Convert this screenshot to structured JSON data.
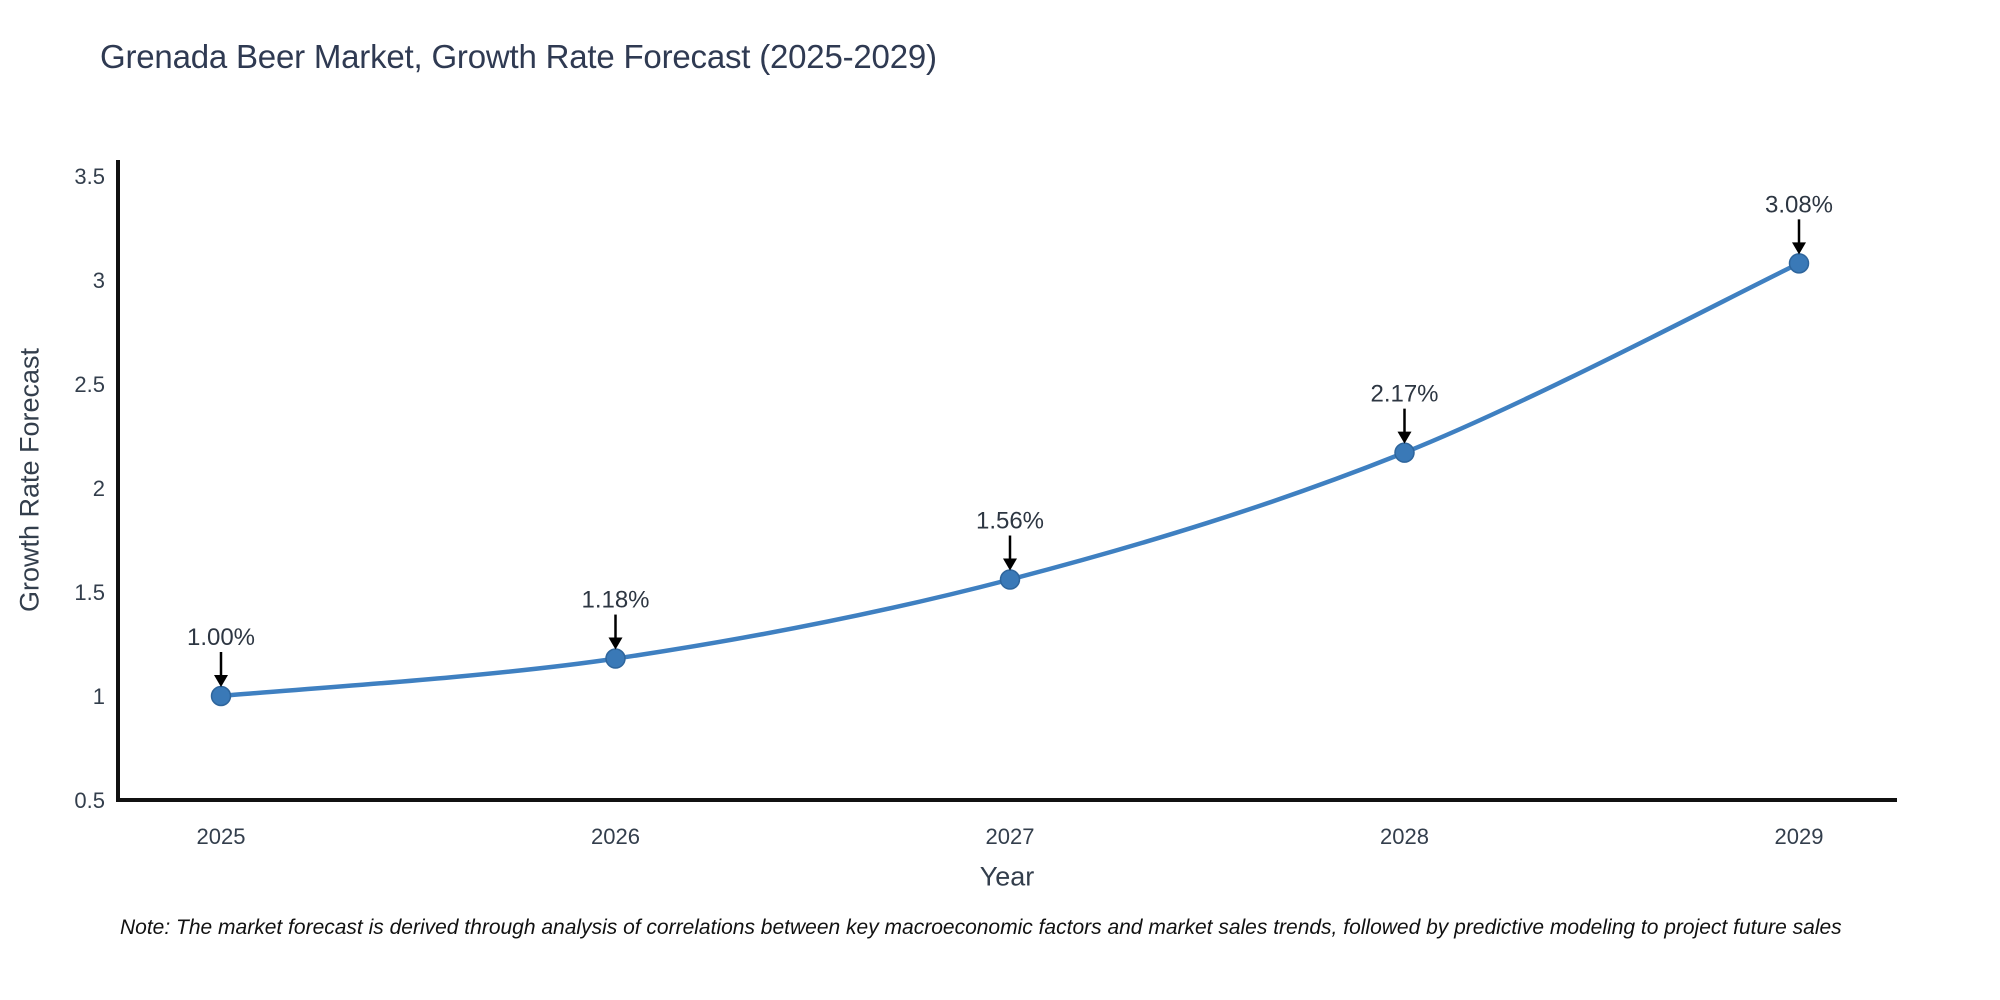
{
  "note": "Note: The market forecast is derived through analysis of correlations between key macroeconomic factors and market sales trends, followed by predictive modeling to project future sales",
  "chart_data": {
    "type": "line",
    "title": "Grenada Beer Market, Growth Rate Forecast (2025-2029)",
    "xlabel": "Year",
    "ylabel": "Growth Rate Forecast",
    "x": [
      "2025",
      "2026",
      "2027",
      "2028",
      "2029"
    ],
    "series": [
      {
        "name": "Growth Rate Forecast",
        "values": [
          1.0,
          1.18,
          1.56,
          2.17,
          3.08
        ],
        "point_labels": [
          "1.00%",
          "1.18%",
          "1.56%",
          "2.17%",
          "3.08%"
        ]
      }
    ],
    "ylim": [
      0.5,
      3.5
    ],
    "yticks": [
      0.5,
      1,
      1.5,
      2,
      2.5,
      3,
      3.5
    ],
    "grid": false,
    "legend": "none",
    "marker": "circle",
    "annotation_arrow": "down-arrow",
    "colors": {
      "line": "#3f80c1",
      "marker_fill": "#3a79b7",
      "marker_edge": "#2e659c",
      "axis": "#111111",
      "tick_text": "#333e4c",
      "annotation_text": "#2d3642",
      "arrow": "#000000",
      "title_text": "#2f3a52",
      "background": "#ffffff"
    }
  }
}
